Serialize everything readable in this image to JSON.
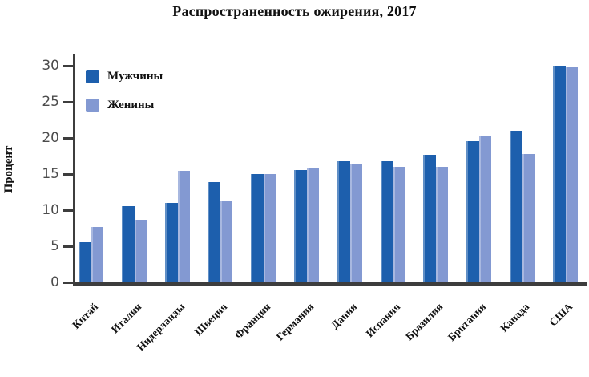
{
  "chart_data": {
    "type": "bar",
    "title": "Распространенность ожирения, 2017",
    "ylabel": "Процент",
    "xlabel": "",
    "ylim": [
      0,
      30
    ],
    "yticks": [
      0,
      5,
      10,
      15,
      20,
      25,
      30
    ],
    "grid": false,
    "legend_position": "upper left",
    "categories": [
      "Китай",
      "Италия",
      "Нидерланды",
      "Швеция",
      "Франция",
      "Германия",
      "Дания",
      "Испания",
      "Бразилия",
      "Британия",
      "Канада",
      "США"
    ],
    "series": [
      {
        "name": "Мужчины",
        "color": "#1d5fad",
        "values": [
          5.5,
          10.5,
          11.0,
          13.9,
          15.0,
          15.5,
          16.8,
          16.8,
          17.7,
          19.5,
          21.0,
          30.0
        ]
      },
      {
        "name": "Женины",
        "color": "#8399d2",
        "values": [
          7.7,
          8.7,
          15.4,
          11.2,
          15.0,
          15.9,
          16.3,
          16.0,
          16.0,
          20.2,
          17.8,
          29.8
        ]
      }
    ],
    "colors": {
      "axis": "#3d3d3d",
      "tick_text": "#4c4c4c",
      "text": "#111111",
      "background": "#ffffff"
    }
  }
}
